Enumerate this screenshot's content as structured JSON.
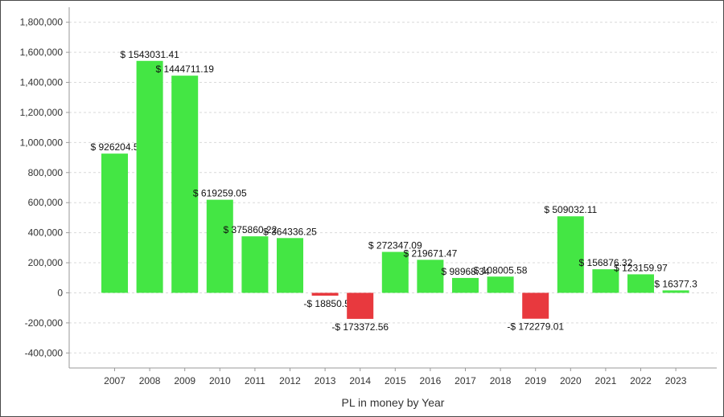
{
  "chart_data": {
    "type": "bar",
    "title": "",
    "xlabel": "PL in money by Year",
    "ylabel": "",
    "ylim": [
      -500000,
      1900000
    ],
    "yticks": [
      -400000,
      -200000,
      0,
      200000,
      400000,
      600000,
      800000,
      1000000,
      1200000,
      1400000,
      1600000,
      1800000
    ],
    "ytick_labels": [
      "-400,000",
      "-200,000",
      "0",
      "200,000",
      "400,000",
      "600,000",
      "800,000",
      "1,000,000",
      "1,200,000",
      "1,400,000",
      "1,600,000",
      "1,800,000"
    ],
    "grid": true,
    "legend": "none",
    "categories": [
      "2007",
      "2008",
      "2009",
      "2010",
      "2011",
      "2012",
      "2013",
      "2014",
      "2015",
      "2016",
      "2017",
      "2018",
      "2019",
      "2020",
      "2021",
      "2022",
      "2023"
    ],
    "values": [
      926204.5,
      1543031.41,
      1444711.19,
      619259.05,
      375860.22,
      364336.25,
      -18850.5,
      -173372.56,
      272347.09,
      219671.47,
      98968.34,
      108005.58,
      -172279.01,
      509032.11,
      156876.32,
      123159.97,
      16377.3
    ],
    "labels": [
      "$ 926204.5",
      "$ 1543031.41",
      "$ 1444711.19",
      "$ 619259.05",
      "$ 375860.22",
      "$ 364336.25",
      "-$ 18850.5",
      "-$ 173372.56",
      "$ 272347.09",
      "$ 219671.47",
      "$ 98968.34",
      "$ 108005.58",
      "-$ 172279.01",
      "$ 509032.11",
      "$ 156876.32",
      "$ 123159.97",
      "$ 16377.3"
    ],
    "colors": {
      "positive": "#44e644",
      "negative": "#e8393e",
      "grid": "#d9d9d9",
      "axis": "#999999"
    }
  }
}
